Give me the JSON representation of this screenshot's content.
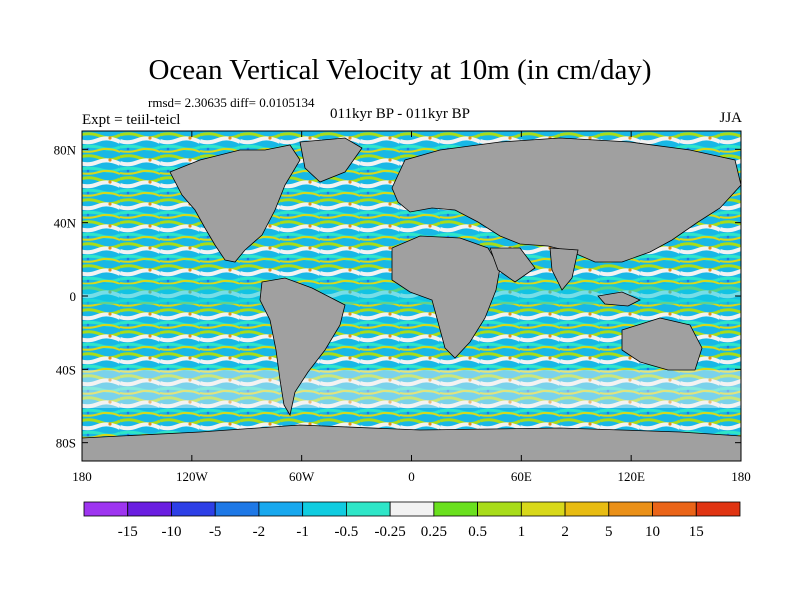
{
  "title": "Ocean Vertical Velocity at 10m (in cm/day)",
  "stats": "rmsd= 2.30635 diff= 0.0105134",
  "experiment": "Expt = teiil-teicl",
  "period": "011kyr BP - 011kyr BP",
  "season": "JJA",
  "map": {
    "projection": "cylindrical-equidistant",
    "lon_range": [
      -180,
      180
    ],
    "lat_range": [
      -90,
      90
    ],
    "land_color": "#a0a0a0",
    "lon_ticks": [
      {
        "value": -180,
        "label": "180"
      },
      {
        "value": -120,
        "label": "120W"
      },
      {
        "value": -60,
        "label": "60W"
      },
      {
        "value": 0,
        "label": "0"
      },
      {
        "value": 60,
        "label": "60E"
      },
      {
        "value": 120,
        "label": "120E"
      },
      {
        "value": 180,
        "label": "180"
      }
    ],
    "lat_ticks": [
      {
        "value": 80,
        "label": "80N"
      },
      {
        "value": 40,
        "label": "40N"
      },
      {
        "value": 0,
        "label": "0"
      },
      {
        "value": -40,
        "label": "40S"
      },
      {
        "value": -80,
        "label": "80S"
      }
    ]
  },
  "colorbar": {
    "colors": [
      "#9e35f0",
      "#6a1ee0",
      "#2d3fe6",
      "#1e78e6",
      "#18a8ee",
      "#10cce0",
      "#2ee6c8",
      "#f2f2f2",
      "#6ae01e",
      "#a8dc1a",
      "#d8d81a",
      "#e8bc12",
      "#ea9018",
      "#ea6418",
      "#e03412"
    ],
    "labels": [
      "-15",
      "-10",
      "-5",
      "-2",
      "-1",
      "-0.5",
      "-0.25",
      "0.25",
      "0.5",
      "1",
      "2",
      "5",
      "10",
      "15"
    ]
  }
}
